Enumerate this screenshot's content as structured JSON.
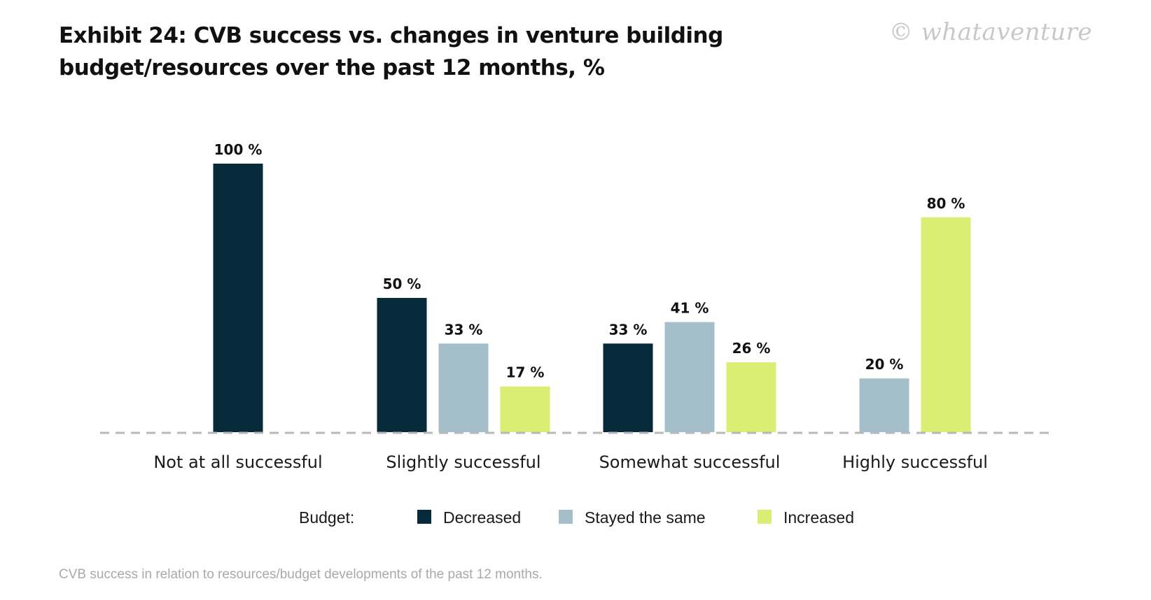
{
  "title": {
    "line1": "Exhibit 24: CVB success vs. changes in venture building",
    "line2": "budget/resources over the past 12 months, %"
  },
  "watermark": "© whataventure",
  "footnote": "CVB success in relation to resources/budget developments of the past 12 months.",
  "colors": {
    "decreased": "#062a39",
    "stayed": "#a5bfca",
    "increased": "#daee73",
    "baseline": "#b8b8b8"
  },
  "chart_data": {
    "type": "bar",
    "categories": [
      "Not at all successful",
      "Slightly successful",
      "Somewhat successful",
      "Highly successful"
    ],
    "series": [
      {
        "name": "Decreased",
        "values": [
          100,
          50,
          33,
          null
        ]
      },
      {
        "name": "Stayed the same",
        "values": [
          null,
          33,
          41,
          20
        ]
      },
      {
        "name": "Increased",
        "values": [
          null,
          17,
          26,
          80
        ]
      }
    ],
    "value_suffix": " %",
    "ylim": [
      0,
      100
    ],
    "grid": false,
    "legend": {
      "title": "Budget:",
      "placement": "bottom-center"
    }
  }
}
